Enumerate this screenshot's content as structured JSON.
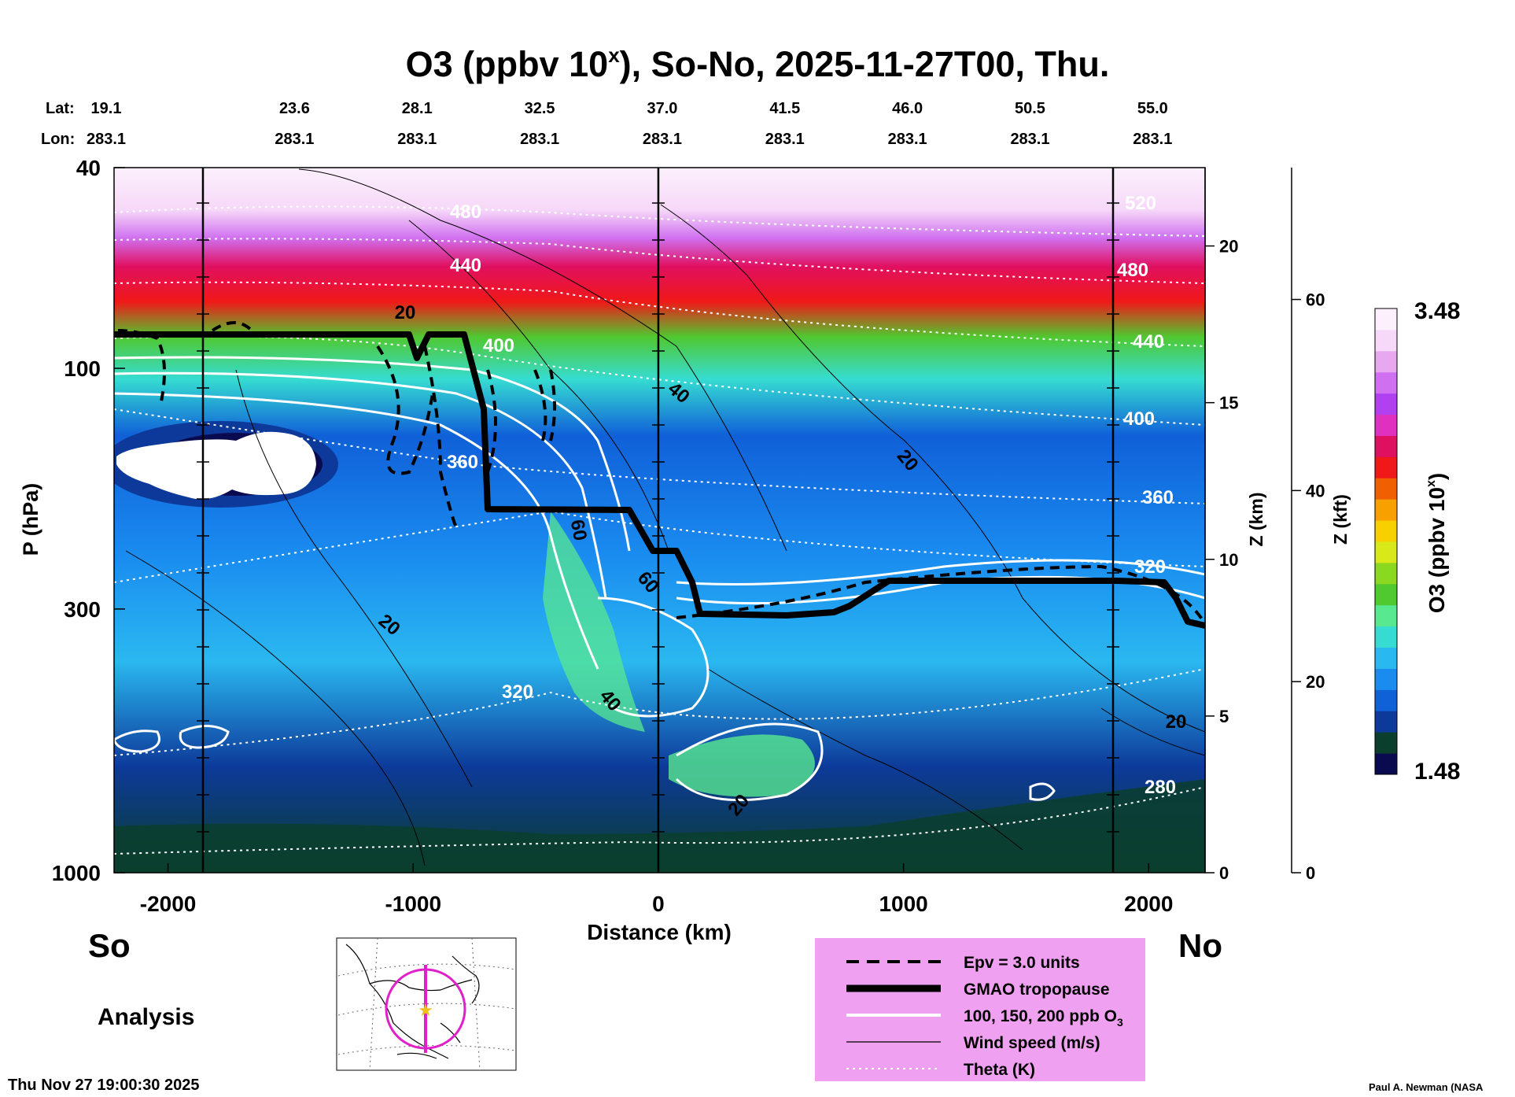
{
  "chart_data": {
    "type": "heatmap",
    "title_main": "O3 (ppbv 10",
    "title_sup": "x",
    "title_tail": "), So-No, 2025-11-27T00, Thu.",
    "lat_label": "Lat:",
    "lon_label": "Lon:",
    "columns": [
      {
        "distance_km": -2000,
        "lat": "19.1",
        "lon": "283.1"
      },
      {
        "distance_km": -1500,
        "lat": "23.6",
        "lon": "283.1"
      },
      {
        "distance_km": -1000,
        "lat": "28.1",
        "lon": "283.1"
      },
      {
        "distance_km": -500,
        "lat": "32.5",
        "lon": "283.1"
      },
      {
        "distance_km": 0,
        "lat": "37.0",
        "lon": "283.1"
      },
      {
        "distance_km": 500,
        "lat": "41.5",
        "lon": "283.1"
      },
      {
        "distance_km": 1000,
        "lat": "46.0",
        "lon": "283.1"
      },
      {
        "distance_km": 1500,
        "lat": "50.5",
        "lon": "283.1"
      },
      {
        "distance_km": 2000,
        "lat": "55.0",
        "lon": "283.1"
      }
    ],
    "xlabel": "Distance (km)",
    "xlim": [
      -2220,
      2230
    ],
    "xticks": [
      {
        "value": -2000,
        "label": "-2000"
      },
      {
        "value": -1000,
        "label": "-1000"
      },
      {
        "value": 0,
        "label": "0"
      },
      {
        "value": 1000,
        "label": "1000"
      },
      {
        "value": 2000,
        "label": "2000"
      }
    ],
    "ylabel": "P (hPa)",
    "ylim": [
      1000,
      40
    ],
    "yticks": [
      {
        "value": 40,
        "label": "40"
      },
      {
        "value": 100,
        "label": "100"
      },
      {
        "value": 300,
        "label": "300"
      },
      {
        "value": 1000,
        "label": "1000"
      }
    ],
    "z_km_label": "Z (km)",
    "z_km_ticks": [
      {
        "value": 0,
        "label": "0"
      },
      {
        "value": 5,
        "label": "5"
      },
      {
        "value": 10,
        "label": "10"
      },
      {
        "value": 15,
        "label": "15"
      },
      {
        "value": 20,
        "label": "20"
      }
    ],
    "z_kft_label": "Z (kft)",
    "z_kft_ticks": [
      {
        "value": 0,
        "label": "0"
      },
      {
        "value": 20,
        "label": "20"
      },
      {
        "value": 40,
        "label": "40"
      },
      {
        "value": 60,
        "label": "60"
      }
    ],
    "vertical_markers_km": [
      -1850,
      0,
      1850
    ],
    "colorbar": {
      "label_main": "O3 (ppbv 10",
      "label_sup": "x",
      "label_tail": ")",
      "max_label": "3.48",
      "min_label": "1.48",
      "range": [
        1.48,
        3.48
      ],
      "colors": [
        "#0a0a50",
        "#0b3e2d",
        "#0d3a9a",
        "#1060d8",
        "#1a8cf0",
        "#2ab8f0",
        "#36dcd2",
        "#58e890",
        "#50c830",
        "#8ad820",
        "#d8e818",
        "#f8d000",
        "#f8a000",
        "#f06000",
        "#f01818",
        "#e01060",
        "#e030c0",
        "#b040f0",
        "#d070f0",
        "#e8a8f0",
        "#f6d8f8",
        "#fcf0fc"
      ]
    },
    "contour_labels": {
      "wind_speed": [
        "20",
        "40",
        "20",
        "60",
        "60",
        "20",
        "40",
        "20",
        "20"
      ],
      "theta": [
        "480",
        "440",
        "400",
        "360",
        "320",
        "520",
        "480",
        "440",
        "400",
        "360",
        "320",
        "280"
      ]
    },
    "side_labels": {
      "south": "So",
      "north": "No"
    },
    "mode_label": "Analysis",
    "timestamp": "Thu Nov 27 19:00:30 2025",
    "credit": "Paul A. Newman (NASA",
    "legend": [
      {
        "style": "dashed",
        "label": "Epv = 3.0 units"
      },
      {
        "style": "thick",
        "label": "GMAO tropopause"
      },
      {
        "style": "white",
        "label": "100, 150, 200 ppb O",
        "sub": "3"
      },
      {
        "style": "thin",
        "label": "Wind speed (m/s)"
      },
      {
        "style": "dotted",
        "label": "Theta (K)"
      }
    ],
    "legend_bg": "#f0a0f0",
    "inset_map": {
      "track_color": "#e020c8",
      "marker": "star",
      "marker_color": "#f0c020"
    }
  }
}
